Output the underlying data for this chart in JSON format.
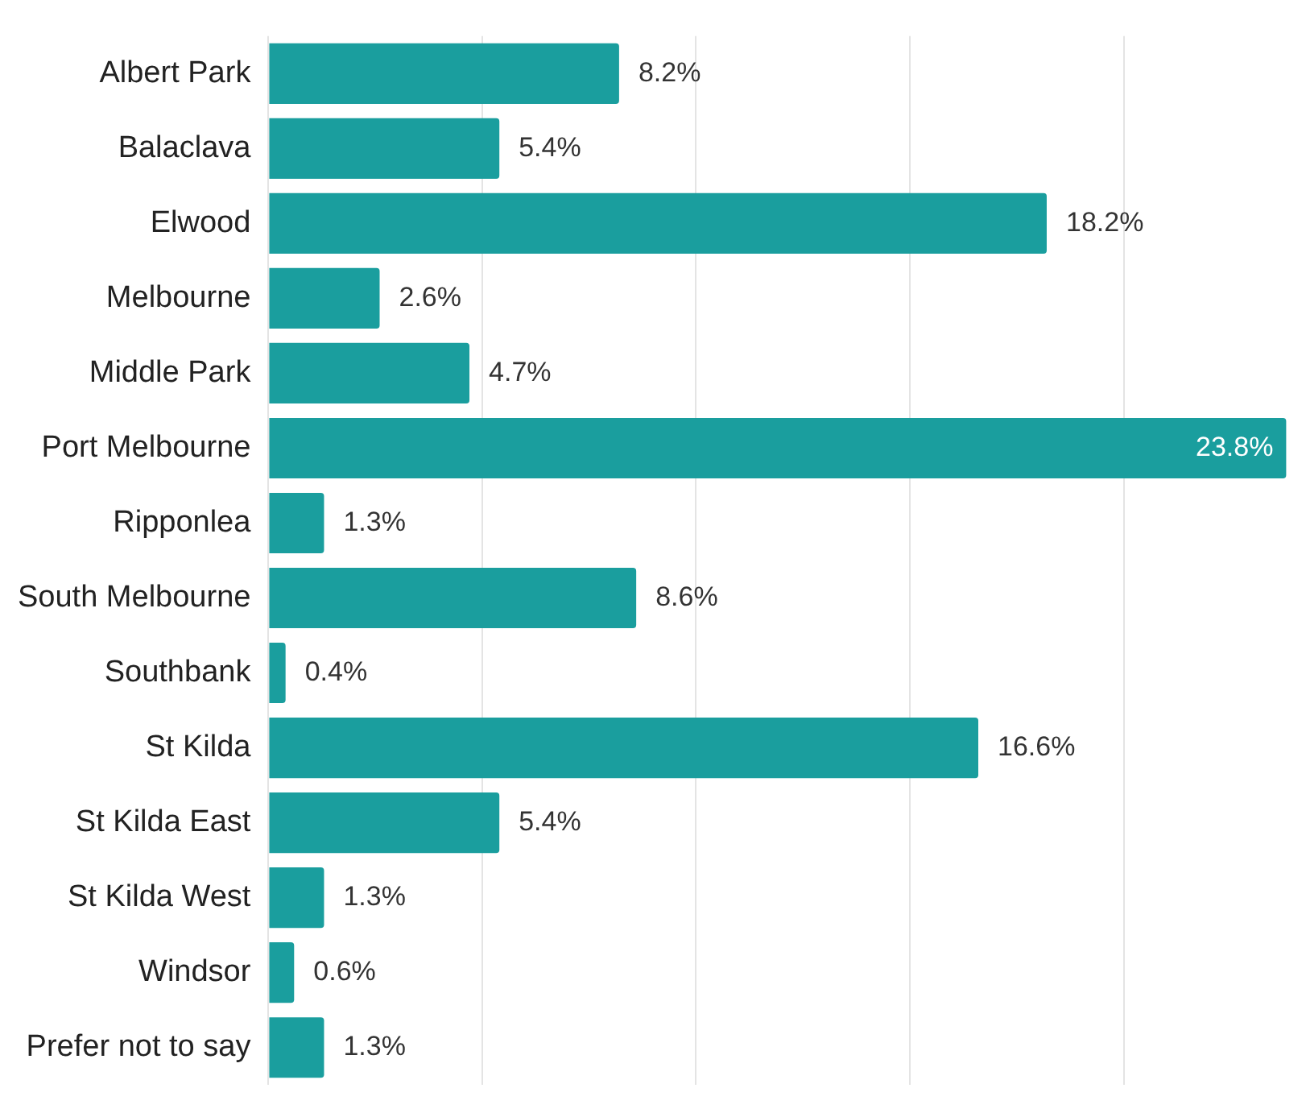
{
  "chart_data": {
    "type": "bar",
    "orientation": "horizontal",
    "categories": [
      "Albert Park",
      "Balaclava",
      "Elwood",
      "Melbourne",
      "Middle Park",
      "Port Melbourne",
      "Ripponlea",
      "South Melbourne",
      "Southbank",
      "St Kilda",
      "St Kilda East",
      "St Kilda West",
      "Windsor",
      "Prefer not to say"
    ],
    "values": [
      8.2,
      5.4,
      18.2,
      2.6,
      4.7,
      23.8,
      1.3,
      8.6,
      0.4,
      16.6,
      5.4,
      1.3,
      0.6,
      1.3
    ],
    "value_labels": [
      "8.2%",
      "5.4%",
      "18.2%",
      "2.6%",
      "4.7%",
      "23.8%",
      "1.3%",
      "8.6%",
      "0.4%",
      "16.6%",
      "5.4%",
      "1.3%",
      "0.6%",
      "1.3%"
    ],
    "color": "#1a9e9e",
    "xlim": [
      0,
      24
    ],
    "xticks": [
      {
        "value": 0,
        "label": null
      },
      {
        "value": 5,
        "label": null
      },
      {
        "value": 10,
        "label": null
      },
      {
        "value": 15,
        "label": null
      },
      {
        "value": 20,
        "label": null
      }
    ],
    "grid": "x",
    "tick_labels": "y"
  }
}
